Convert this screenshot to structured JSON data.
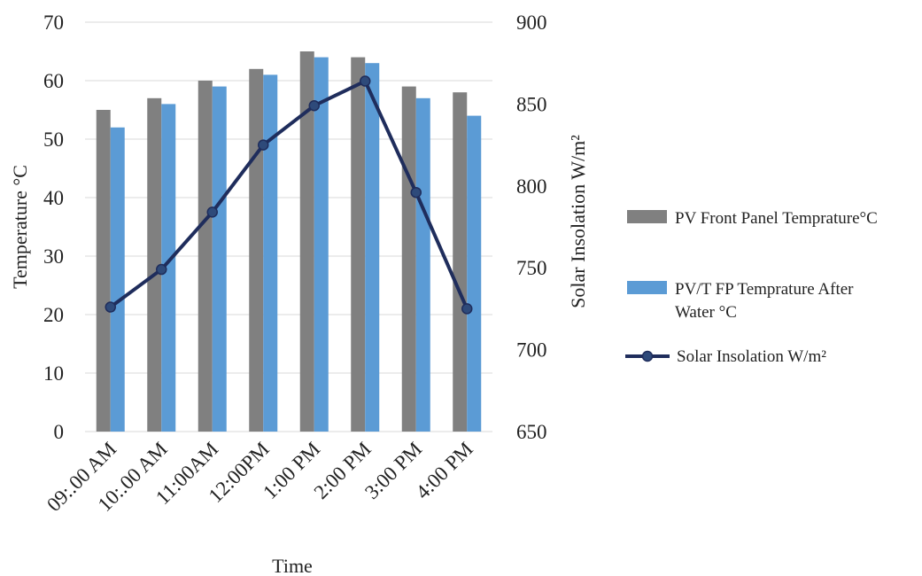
{
  "chart_data": {
    "type": "bar",
    "categories": [
      "09:.00 AM",
      "10:.00 AM",
      "11:00AM",
      "12:00PM",
      "1:00 PM",
      "2:00 PM",
      "3:00 PM",
      "4:00 PM"
    ],
    "series": [
      {
        "name": "PV Front Panel Temprature°C",
        "type": "bar",
        "axis": "left",
        "color": "#808080",
        "values": [
          55,
          57,
          60,
          62,
          65,
          64,
          59,
          58
        ]
      },
      {
        "name": "PV/T FP Temprature After Water °C",
        "type": "bar",
        "axis": "left",
        "color": "#5b9bd5",
        "values": [
          52,
          56,
          59,
          61,
          64,
          63,
          57,
          54
        ]
      },
      {
        "name": "Solar Insolation W/m²",
        "type": "line",
        "axis": "right",
        "color": "#1f2d5c",
        "marker_color": "#2e4a7a",
        "values": [
          726,
          749,
          784,
          825,
          849,
          864,
          796,
          725
        ]
      }
    ],
    "xlabel": "Time",
    "ylabel_left": "Temperature  °C",
    "ylabel_right": "Solar  Insolation  W/m²",
    "ylim_left": [
      0,
      70
    ],
    "yticks_left": [
      "0",
      "10",
      "20",
      "30",
      "40",
      "50",
      "60",
      "70"
    ],
    "ylim_right": [
      650,
      900
    ],
    "yticks_right": [
      "650",
      "700",
      "750",
      "800",
      "850",
      "900"
    ],
    "grid": "horizontal",
    "legend_position": "right"
  }
}
